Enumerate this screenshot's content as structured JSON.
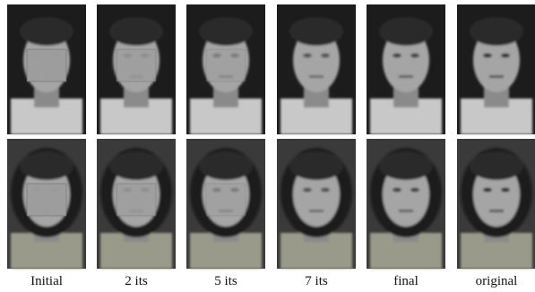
{
  "captions": [
    "Initial",
    "2 its",
    "5 its",
    "7 its",
    "final",
    "original"
  ]
}
